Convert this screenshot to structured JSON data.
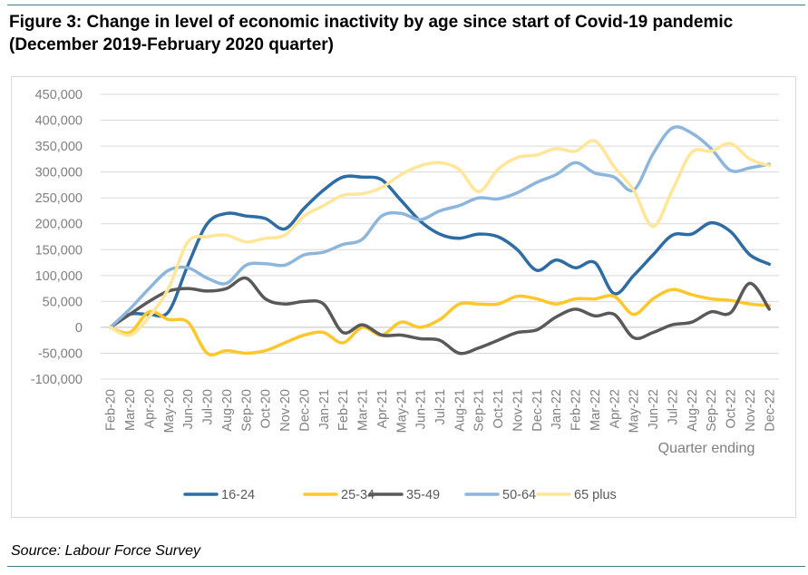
{
  "title": {
    "line1": "Figure 3: Change in level of economic inactivity by age since start of Covid-19 pandemic",
    "line2": "(December 2019-February 2020 quarter)"
  },
  "source": "Source: Labour Force Survey",
  "chart_data": {
    "type": "line",
    "title": "Figure 3: Change in level of economic inactivity by age since start of Covid-19 pandemic (December 2019-February 2020 quarter)",
    "xlabel": "Quarter ending",
    "ylabel": "",
    "ylim": [
      -100000,
      450000
    ],
    "yticks": [
      -100000,
      -50000,
      0,
      50000,
      100000,
      150000,
      200000,
      250000,
      300000,
      350000,
      400000,
      450000
    ],
    "ytick_labels": [
      "-100,000",
      "-50,000",
      "0",
      "50,000",
      "100,000",
      "150,000",
      "200,000",
      "250,000",
      "300,000",
      "350,000",
      "400,000",
      "450,000"
    ],
    "grid": true,
    "legend_position": "bottom",
    "categories": [
      "Feb-20",
      "Mar-20",
      "Apr-20",
      "May-20",
      "Jun-20",
      "Jul-20",
      "Aug-20",
      "Sep-20",
      "Oct-20",
      "Nov-20",
      "Dec-20",
      "Jan-21",
      "Feb-21",
      "Mar-21",
      "Apr-21",
      "May-21",
      "Jun-21",
      "Jul-21",
      "Aug-21",
      "Sep-21",
      "Oct-21",
      "Nov-21",
      "Dec-21",
      "Jan-22",
      "Feb-22",
      "Mar-22",
      "Apr-22",
      "May-22",
      "Jun-22",
      "Jul-22",
      "Aug-22",
      "Sep-22",
      "Oct-22",
      "Nov-22",
      "Dec-22"
    ],
    "series": [
      {
        "name": "16-24",
        "color": "#2e6ca4",
        "values": [
          0,
          25000,
          25000,
          30000,
          120000,
          200000,
          220000,
          215000,
          210000,
          190000,
          230000,
          265000,
          290000,
          290000,
          285000,
          245000,
          205000,
          180000,
          172000,
          180000,
          175000,
          150000,
          110000,
          130000,
          115000,
          125000,
          65000,
          100000,
          140000,
          178000,
          180000,
          202000,
          185000,
          140000,
          122000
        ]
      },
      {
        "name": "25-34",
        "color": "#ffc72c",
        "values": [
          0,
          -10000,
          30000,
          15000,
          10000,
          -50000,
          -45000,
          -50000,
          -45000,
          -30000,
          -15000,
          -10000,
          -30000,
          0,
          -15000,
          10000,
          0,
          15000,
          45000,
          45000,
          45000,
          60000,
          55000,
          45000,
          55000,
          55000,
          60000,
          25000,
          55000,
          73000,
          63000,
          55000,
          52000,
          45000,
          42000
        ]
      },
      {
        "name": "35-49",
        "color": "#595959",
        "values": [
          0,
          25000,
          50000,
          70000,
          75000,
          70000,
          75000,
          95000,
          55000,
          45000,
          50000,
          45000,
          -10000,
          5000,
          -15000,
          -15000,
          -22000,
          -25000,
          -50000,
          -40000,
          -25000,
          -10000,
          -5000,
          20000,
          35000,
          22000,
          25000,
          -20000,
          -10000,
          5000,
          10000,
          30000,
          28000,
          85000,
          35000
        ]
      },
      {
        "name": "50-64",
        "color": "#8db6dd",
        "values": [
          0,
          35000,
          75000,
          110000,
          115000,
          95000,
          85000,
          120000,
          123000,
          120000,
          140000,
          145000,
          160000,
          170000,
          215000,
          220000,
          208000,
          225000,
          235000,
          250000,
          248000,
          260000,
          280000,
          295000,
          318000,
          298000,
          290000,
          265000,
          335000,
          385000,
          375000,
          345000,
          303000,
          308000,
          315000
        ]
      },
      {
        "name": "65 plus",
        "color": "#ffe699",
        "values": [
          0,
          -15000,
          20000,
          75000,
          165000,
          175000,
          178000,
          165000,
          172000,
          178000,
          215000,
          235000,
          255000,
          258000,
          270000,
          295000,
          312000,
          318000,
          305000,
          262000,
          305000,
          328000,
          333000,
          345000,
          340000,
          360000,
          310000,
          265000,
          195000,
          265000,
          338000,
          340000,
          355000,
          325000,
          312000
        ]
      }
    ]
  }
}
